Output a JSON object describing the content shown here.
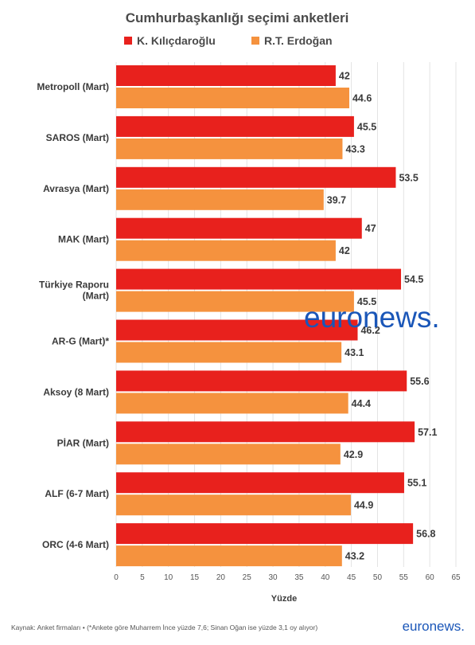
{
  "chart_data": {
    "type": "bar",
    "orientation": "horizontal",
    "title": "Cumhurbaşkanlığı seçimi anketleri",
    "categories": [
      "Metropoll (Mart)",
      "SAROS (Mart)",
      "Avrasya (Mart)",
      "MAK (Mart)",
      "Türkiye Raporu (Mart)",
      "AR-G (Mart)*",
      "Aksoy (8 Mart)",
      "PİAR (Mart)",
      "ALF (6-7 Mart)",
      "ORC (4-6 Mart)"
    ],
    "series": [
      {
        "name": "K. Kılıçdaroğlu",
        "color": "#e8211d",
        "values": [
          42,
          45.5,
          53.5,
          47,
          54.5,
          46.2,
          55.6,
          57.1,
          55.1,
          56.8
        ]
      },
      {
        "name": "R.T. Erdoğan",
        "color": "#f5923e",
        "values": [
          44.6,
          43.3,
          39.7,
          42,
          45.5,
          43.1,
          44.4,
          42.9,
          44.9,
          43.2
        ]
      }
    ],
    "xlabel": "Yüzde",
    "ylabel": "",
    "xlim": [
      0,
      65
    ],
    "xticks": [
      0,
      5,
      10,
      15,
      20,
      25,
      30,
      35,
      40,
      45,
      50,
      55,
      60,
      65
    ],
    "grid": true,
    "legend_position": "top"
  },
  "footer": {
    "source": "Kaynak: Anket firmaları • (*Ankete göre Muharrem İnce yüzde 7,6; Sinan Oğan ise yüzde 3,1 oy alıyor)",
    "brand": "euronews."
  },
  "watermark": {
    "text": "euronews."
  },
  "colors": {
    "grid": "#e3e3e3",
    "background": "#ffffff",
    "watermark": "#1a56b8",
    "brand": "#1a56b8"
  }
}
